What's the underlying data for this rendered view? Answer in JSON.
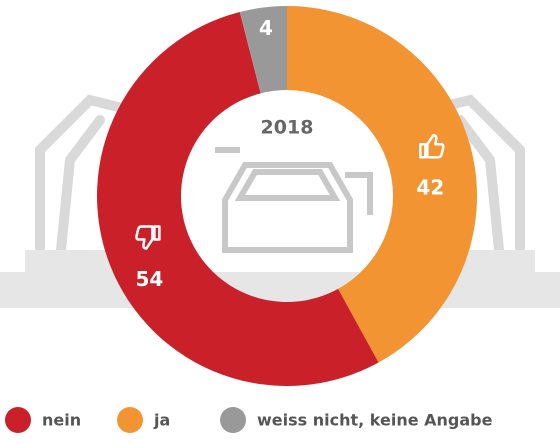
{
  "chart_data": {
    "type": "pie",
    "donut": true,
    "center_label": "2018",
    "categories": [
      "ja",
      "nein",
      "weiss nicht, keine Angabe"
    ],
    "values": [
      42,
      54,
      4
    ],
    "colors": [
      "#f39432",
      "#c9202a",
      "#999999"
    ]
  }
}
